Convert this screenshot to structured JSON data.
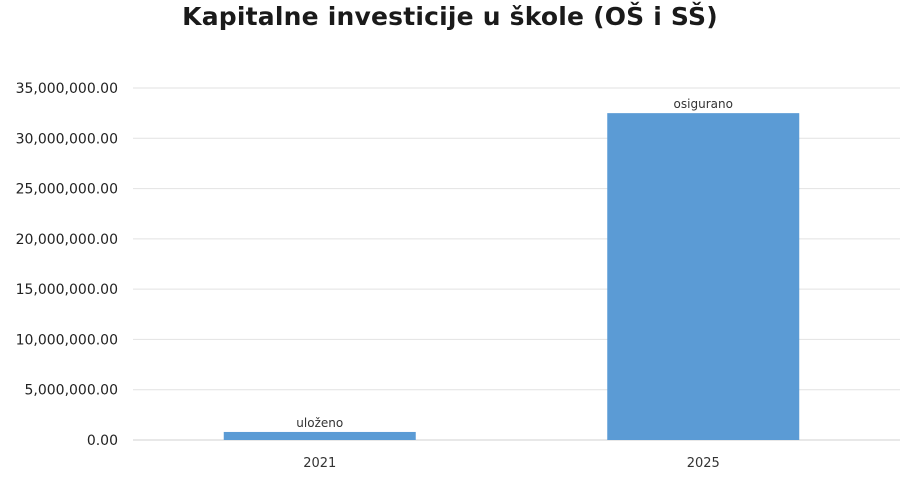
{
  "chart_data": {
    "type": "bar",
    "title": "Kapitalne investicije u škole (OŠ i SŠ)",
    "categories": [
      "2021",
      "2025"
    ],
    "values": [
      800000,
      32500000
    ],
    "data_labels": [
      "uloženo",
      "osigurano"
    ],
    "yticks": [
      "0.00",
      "5,000,000.00",
      "10,000,000.00",
      "15,000,000.00",
      "20,000,000.00",
      "25,000,000.00",
      "30,000,000.00",
      "35,000,000.00"
    ],
    "ylim": [
      0,
      35000000
    ],
    "grid": true,
    "bar_color": "#5b9bd5"
  }
}
